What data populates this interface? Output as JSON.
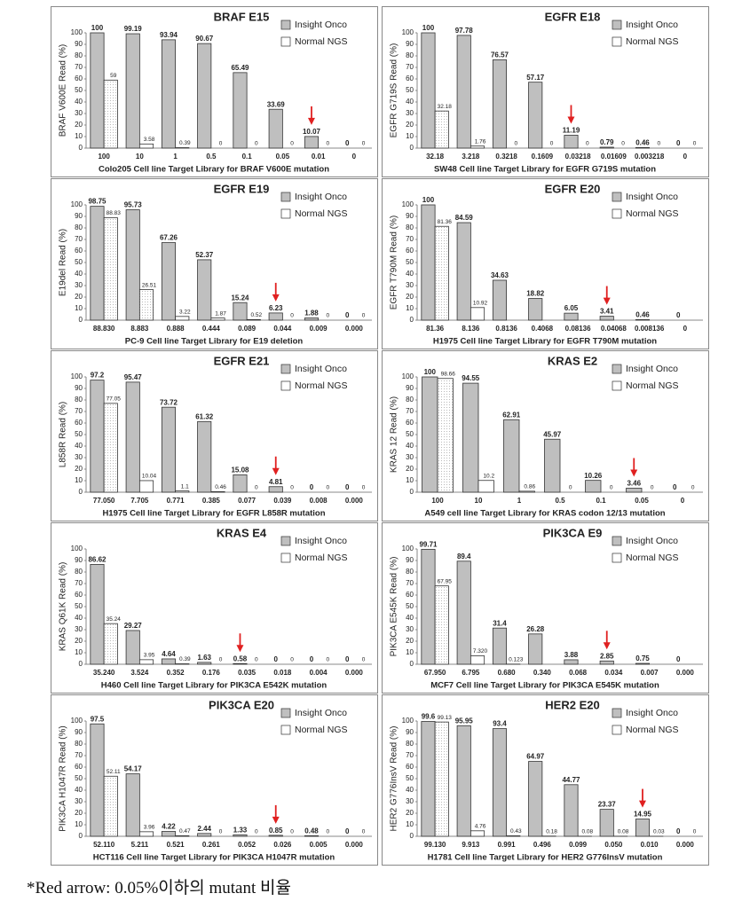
{
  "chart_data": [
    {
      "type": "bar",
      "title": "BRAF E15",
      "ylabel": "BRAF V600E Read (%)",
      "xlabel": "Colo205 Cell line Target Library for BRAF V600E mutation",
      "categories": [
        "100",
        "10",
        "1",
        "0.5",
        "0.1",
        "0.05",
        "0.01",
        "0"
      ],
      "series": [
        {
          "name": "Insight Onco",
          "color": "#bfbfbf",
          "values": [
            100,
            99.19,
            93.94,
            90.67,
            65.49,
            33.69,
            10.07,
            0
          ]
        },
        {
          "name": "Normal NGS",
          "color": "#ffffff",
          "values": [
            59,
            3.58,
            0.39,
            0,
            0,
            0,
            0,
            0
          ]
        }
      ],
      "ylim": [
        0,
        100
      ],
      "yticks": [
        0,
        10,
        20,
        30,
        40,
        50,
        60,
        70,
        80,
        90,
        100
      ],
      "arrow_category": "0.01"
    },
    {
      "type": "bar",
      "title": "EGFR E18",
      "ylabel": "EGFR G719S Read (%)",
      "xlabel": "SW48 Cell line Target Library for EGFR G719S mutation",
      "categories": [
        "32.18",
        "3.218",
        "0.3218",
        "0.1609",
        "0.03218",
        "0.01609",
        "0.003218",
        "0"
      ],
      "series": [
        {
          "name": "Insight Onco",
          "color": "#bfbfbf",
          "values": [
            100,
            97.78,
            76.57,
            57.17,
            11.19,
            0.79,
            0.46,
            0
          ]
        },
        {
          "name": "Normal NGS",
          "color": "#ffffff",
          "values": [
            32.18,
            1.76,
            0,
            0,
            0,
            0,
            0,
            0
          ]
        }
      ],
      "ylim": [
        0,
        100
      ],
      "yticks": [
        0,
        10,
        20,
        30,
        40,
        50,
        60,
        70,
        80,
        90,
        100
      ],
      "arrow_category": "0.03218"
    },
    {
      "type": "bar",
      "title": "EGFR E19",
      "ylabel": "E19del Read (%)",
      "xlabel": "PC-9 Cell line Target Library for E19 deletion",
      "categories": [
        "88.830",
        "8.883",
        "0.888",
        "0.444",
        "0.089",
        "0.044",
        "0.009",
        "0.000"
      ],
      "series": [
        {
          "name": "Insight Onco",
          "color": "#bfbfbf",
          "values": [
            98.75,
            95.73,
            67.26,
            52.37,
            15.24,
            6.23,
            1.88,
            0
          ]
        },
        {
          "name": "Normal NGS",
          "color": "#ffffff",
          "values": [
            88.83,
            26.51,
            3.22,
            1.87,
            0.52,
            0,
            0,
            0
          ]
        }
      ],
      "ylim": [
        0,
        100
      ],
      "yticks": [
        0,
        10,
        20,
        30,
        40,
        50,
        60,
        70,
        80,
        90,
        100
      ],
      "arrow_category": "0.044"
    },
    {
      "type": "bar",
      "title": "EGFR E20",
      "ylabel": "EGFR T790M Read (%)",
      "xlabel": "H1975 Cell line Target Library for EGFR T790M mutation",
      "categories": [
        "81.36",
        "8.136",
        "0.8136",
        "0.4068",
        "0.08136",
        "0.04068",
        "0.008136",
        "0"
      ],
      "series": [
        {
          "name": "Insight Onco",
          "color": "#bfbfbf",
          "values": [
            100,
            84.59,
            34.63,
            18.82,
            6.05,
            3.41,
            0.46,
            0
          ]
        },
        {
          "name": "Normal NGS",
          "color": "#ffffff",
          "values": [
            81.36,
            10.92,
            null,
            null,
            null,
            null,
            null,
            null
          ]
        }
      ],
      "ylim": [
        0,
        100
      ],
      "yticks": [
        0,
        10,
        20,
        30,
        40,
        50,
        60,
        70,
        80,
        90,
        100
      ],
      "arrow_category": "0.04068"
    },
    {
      "type": "bar",
      "title": "EGFR E21",
      "ylabel": "L858R Read (%)",
      "xlabel": "H1975 Cell line Target Library for EGFR L858R mutation",
      "categories": [
        "77.050",
        "7.705",
        "0.771",
        "0.385",
        "0.077",
        "0.039",
        "0.008",
        "0.000"
      ],
      "series": [
        {
          "name": "Insight Onco",
          "color": "#bfbfbf",
          "values": [
            97.2,
            95.47,
            73.72,
            61.32,
            15.08,
            4.81,
            0,
            0
          ]
        },
        {
          "name": "Normal NGS",
          "color": "#ffffff",
          "values": [
            77.05,
            10.04,
            1.1,
            0.46,
            0,
            0,
            0,
            0
          ]
        }
      ],
      "ylim": [
        0,
        100
      ],
      "yticks": [
        0,
        10,
        20,
        30,
        40,
        50,
        60,
        70,
        80,
        90,
        100
      ],
      "arrow_category": "0.039"
    },
    {
      "type": "bar",
      "title": "KRAS E2",
      "ylabel": "KRAS 12 Read (%)",
      "xlabel": "A549 cell line Target Library for KRAS codon 12/13 mutation",
      "categories": [
        "100",
        "10",
        "1",
        "0.5",
        "0.1",
        "0.05",
        "0"
      ],
      "series": [
        {
          "name": "Insight Onco",
          "color": "#bfbfbf",
          "values": [
            100,
            94.55,
            62.91,
            45.97,
            10.26,
            3.46,
            0
          ]
        },
        {
          "name": "Normal NGS",
          "color": "#ffffff",
          "values": [
            98.66,
            10.2,
            0.86,
            0,
            0,
            0,
            0
          ]
        }
      ],
      "ylim": [
        0,
        100
      ],
      "yticks": [
        0,
        10,
        20,
        30,
        40,
        50,
        60,
        70,
        80,
        90,
        100
      ],
      "arrow_category": "0.05"
    },
    {
      "type": "bar",
      "title": "KRAS E4",
      "ylabel": "KRAS Q61K Read (%)",
      "xlabel": "H460 Cell line Target Library for PIK3CA E542K mutation",
      "categories": [
        "35.240",
        "3.524",
        "0.352",
        "0.176",
        "0.035",
        "0.018",
        "0.004",
        "0.000"
      ],
      "series": [
        {
          "name": "Insight Onco",
          "color": "#bfbfbf",
          "values": [
            86.62,
            29.27,
            4.64,
            1.63,
            0.58,
            0,
            0,
            0
          ]
        },
        {
          "name": "Normal NGS",
          "color": "#ffffff",
          "values": [
            35.24,
            3.95,
            0.39,
            0,
            0,
            0,
            0,
            0
          ]
        }
      ],
      "ylim": [
        0,
        100
      ],
      "yticks": [
        0,
        10,
        20,
        30,
        40,
        50,
        60,
        70,
        80,
        90,
        100
      ],
      "arrow_category": "0.035"
    },
    {
      "type": "bar",
      "title": "PIK3CA E9",
      "ylabel": "PIK3CA E545K Read (%)",
      "xlabel": "MCF7 Cell line Target Library for PIK3CA E545K mutation",
      "categories": [
        "67.950",
        "6.795",
        "0.680",
        "0.340",
        "0.068",
        "0.034",
        "0.007",
        "0.000"
      ],
      "series": [
        {
          "name": "Insight Onco",
          "color": "#bfbfbf",
          "values": [
            99.71,
            89.4,
            31.4,
            26.28,
            3.88,
            2.85,
            0.75,
            0
          ]
        },
        {
          "name": "Normal NGS",
          "color": "#ffffff",
          "values": [
            67.95,
            7.32,
            0.123,
            null,
            null,
            null,
            null,
            null
          ],
          "value_labels": [
            "67.95",
            "7.320",
            "0.123",
            null,
            null,
            null,
            null,
            null
          ]
        }
      ],
      "ylim": [
        0,
        100
      ],
      "yticks": [
        0,
        10,
        20,
        30,
        40,
        50,
        60,
        70,
        80,
        90,
        100
      ],
      "arrow_category": "0.034"
    },
    {
      "type": "bar",
      "title": "PIK3CA E20",
      "ylabel": "PIK3CA H1047R Read (%)",
      "xlabel": "HCT116 Cell line Target Library for PIK3CA H1047R mutation",
      "categories": [
        "52.110",
        "5.211",
        "0.521",
        "0.261",
        "0.052",
        "0.026",
        "0.005",
        "0.000"
      ],
      "series": [
        {
          "name": "Insight Onco",
          "color": "#bfbfbf",
          "values": [
            97.5,
            54.17,
            4.22,
            2.44,
            1.33,
            0.85,
            0.48,
            0
          ]
        },
        {
          "name": "Normal NGS",
          "color": "#ffffff",
          "values": [
            52.11,
            3.96,
            0.47,
            0,
            0,
            0,
            0,
            0
          ]
        }
      ],
      "ylim": [
        0,
        100
      ],
      "yticks": [
        0,
        10,
        20,
        30,
        40,
        50,
        60,
        70,
        80,
        90,
        100
      ],
      "arrow_category": "0.026"
    },
    {
      "type": "bar",
      "title": "HER2 E20",
      "ylabel": "HER2 G776InsV Read (%)",
      "xlabel": "H1781 Cell line Target Library for HER2 G776InsV mutation",
      "categories": [
        "99.130",
        "9.913",
        "0.991",
        "0.496",
        "0.099",
        "0.050",
        "0.010",
        "0.000"
      ],
      "series": [
        {
          "name": "Insight Onco",
          "color": "#bfbfbf",
          "values": [
            99.6,
            95.95,
            93.4,
            64.97,
            44.77,
            23.37,
            14.95,
            0
          ]
        },
        {
          "name": "Normal NGS",
          "color": "#ffffff",
          "values": [
            99.13,
            4.76,
            0.43,
            0.18,
            0.08,
            0.08,
            0.03,
            0
          ]
        }
      ],
      "ylim": [
        0,
        100
      ],
      "yticks": [
        0,
        10,
        20,
        30,
        40,
        50,
        60,
        70,
        80,
        90,
        100
      ],
      "arrow_category": "0.010"
    }
  ],
  "footnote": "*Red arrow: 0.05%이하의 mutant 비율"
}
